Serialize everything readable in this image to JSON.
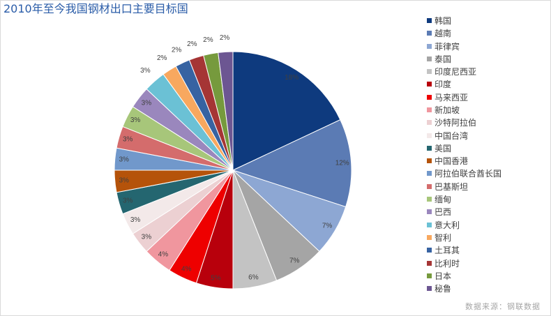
{
  "chart_data": {
    "type": "pie",
    "title": "2010年至今我国钢材出口主要目标国",
    "categories": [
      "韩国",
      "越南",
      "菲律宾",
      "泰国",
      "印度尼西亚",
      "印度",
      "马来西亚",
      "新加坡",
      "沙特阿拉伯",
      "中国台湾",
      "美国",
      "中国香港",
      "阿拉伯联合酋长国",
      "巴基斯坦",
      "缅甸",
      "巴西",
      "意大利",
      "智利",
      "土耳其",
      "比利时",
      "日本",
      "秘鲁"
    ],
    "values": [
      18,
      12,
      7,
      7,
      6,
      5,
      4,
      4,
      3,
      3,
      3,
      3,
      3,
      3,
      3,
      3,
      3,
      2,
      2,
      2,
      2,
      2
    ],
    "data_labels": [
      "18%",
      "12%",
      "7%",
      "7%",
      "6%",
      "5%",
      "4%",
      "4%",
      "3%",
      "3%",
      "3%",
      "3%",
      "3%",
      "3%",
      "3%",
      "3%",
      "3%",
      "2%",
      "2%",
      "2%",
      "2%",
      "2%"
    ],
    "colors": [
      "#0e3a7e",
      "#5b7bb4",
      "#8da7d3",
      "#a5a5a5",
      "#c3c3c3",
      "#b8000c",
      "#ee0000",
      "#f0969e",
      "#ecd0d2",
      "#f3e9e9",
      "#246670",
      "#b5530a",
      "#7198cb",
      "#d46c6c",
      "#a7c67a",
      "#9a87bd",
      "#6bc1d5",
      "#f8a85f",
      "#3763a2",
      "#a53535",
      "#769a3d",
      "#6c5692"
    ],
    "legend": "right",
    "source": "数据来源：钢联数据"
  }
}
